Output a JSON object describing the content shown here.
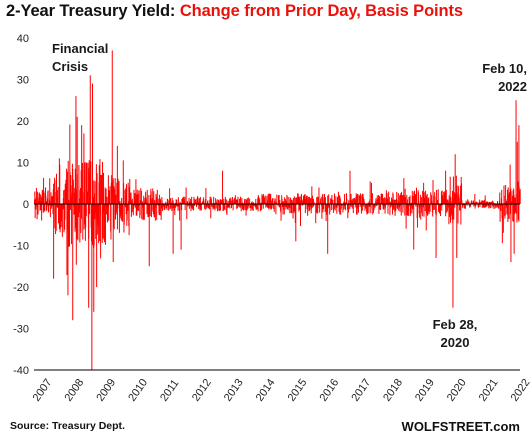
{
  "title_part1": "2-Year Treasury Yield:",
  "title_part2": "Change from Prior Day, Basis Points",
  "source": "Source: Treasury Dept.",
  "brand": "WOLFSTREET.com",
  "colors": {
    "series": "#ff0000",
    "zero_line": "#000000",
    "title_accent": "#e8140c",
    "grid": "#d8d8d8"
  },
  "chart_data": {
    "type": "bar",
    "title": "2-Year Treasury Yield: Change from Prior Day, Basis Points",
    "xlabel": "",
    "ylabel": "",
    "ylim": [
      -40,
      40
    ],
    "xlim": [
      2007.0,
      2022.25
    ],
    "y_ticks": [
      -40,
      -30,
      -20,
      -10,
      0,
      10,
      20,
      30,
      40
    ],
    "x_ticks": [
      "2007",
      "2008",
      "2009",
      "2010",
      "2011",
      "2012",
      "2013",
      "2014",
      "2015",
      "2016",
      "2017",
      "2018",
      "2019",
      "2020",
      "2021",
      "2022"
    ],
    "grid": false,
    "legend": "none",
    "series": [
      {
        "values_description": "daily change in 2-year Treasury yield, basis points"
      }
    ],
    "volatility_by_period": [
      {
        "from": 2007.0,
        "to": 2007.55,
        "typical": 4,
        "max": 7
      },
      {
        "from": 2007.55,
        "to": 2008.0,
        "typical": 8,
        "max": 14
      },
      {
        "from": 2008.0,
        "to": 2009.2,
        "typical": 11,
        "max": 20
      },
      {
        "from": 2009.2,
        "to": 2010.0,
        "typical": 7,
        "max": 12
      },
      {
        "from": 2010.0,
        "to": 2011.0,
        "typical": 4,
        "max": 8
      },
      {
        "from": 2011.0,
        "to": 2014.0,
        "typical": 1.8,
        "max": 4
      },
      {
        "from": 2014.0,
        "to": 2018.0,
        "typical": 2.6,
        "max": 6
      },
      {
        "from": 2018.0,
        "to": 2020.0,
        "typical": 3.4,
        "max": 7
      },
      {
        "from": 2020.0,
        "to": 2020.4,
        "typical": 7,
        "max": 14
      },
      {
        "from": 2020.4,
        "to": 2021.6,
        "typical": 1.2,
        "max": 3
      },
      {
        "from": 2021.6,
        "to": 2022.25,
        "typical": 4.5,
        "max": 10
      }
    ],
    "notable_points": [
      {
        "x": 2007.6,
        "y": -18
      },
      {
        "x": 2007.78,
        "y": 11
      },
      {
        "x": 2008.05,
        "y": -22
      },
      {
        "x": 2008.2,
        "y": -28
      },
      {
        "x": 2008.3,
        "y": 26
      },
      {
        "x": 2008.34,
        "y": 21
      },
      {
        "x": 2008.48,
        "y": 19
      },
      {
        "x": 2008.55,
        "y": 17
      },
      {
        "x": 2008.7,
        "y": -25
      },
      {
        "x": 2008.75,
        "y": 31
      },
      {
        "x": 2008.8,
        "y": -40
      },
      {
        "x": 2008.82,
        "y": 29
      },
      {
        "x": 2008.86,
        "y": -26
      },
      {
        "x": 2008.95,
        "y": -20
      },
      {
        "x": 2009.44,
        "y": 37
      },
      {
        "x": 2009.47,
        "y": -14
      },
      {
        "x": 2009.6,
        "y": 14
      },
      {
        "x": 2010.6,
        "y": -15
      },
      {
        "x": 2011.35,
        "y": -12
      },
      {
        "x": 2011.6,
        "y": -11
      },
      {
        "x": 2012.9,
        "y": 8
      },
      {
        "x": 2015.2,
        "y": -9
      },
      {
        "x": 2016.2,
        "y": -12
      },
      {
        "x": 2016.9,
        "y": 8
      },
      {
        "x": 2018.9,
        "y": -11
      },
      {
        "x": 2019.6,
        "y": -13
      },
      {
        "x": 2019.9,
        "y": 8
      },
      {
        "x": 2020.13,
        "y": -25
      },
      {
        "x": 2020.2,
        "y": 12
      },
      {
        "x": 2020.25,
        "y": -13
      },
      {
        "x": 2021.95,
        "y": -14
      },
      {
        "x": 2022.05,
        "y": -12
      },
      {
        "x": 2022.11,
        "y": 25
      },
      {
        "x": 2022.15,
        "y": 15
      },
      {
        "x": 2022.2,
        "y": 19
      }
    ],
    "annotations": [
      {
        "text_lines": [
          "Financial",
          "Crisis"
        ]
      },
      {
        "text_lines": [
          "Feb 10,",
          "2022"
        ]
      },
      {
        "text_lines": [
          "Feb 28,",
          "2020"
        ]
      }
    ]
  }
}
